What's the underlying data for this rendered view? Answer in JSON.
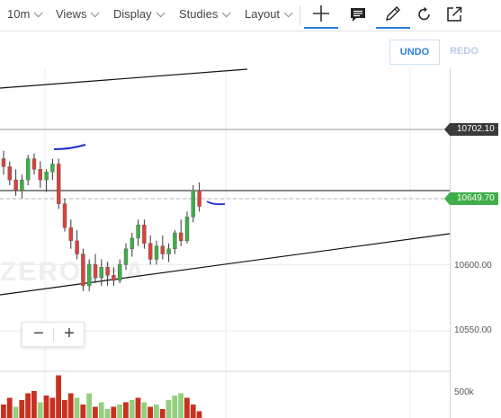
{
  "toolbar": {
    "interval": "10m",
    "menus": [
      "Views",
      "Display",
      "Studies",
      "Layout"
    ],
    "tools": {
      "crosshair": "crosshair-icon",
      "comment": "comment-icon",
      "draw": "pencil-icon",
      "refresh": "refresh-icon",
      "expand": "expand-icon"
    },
    "active_color": "#2b7fd9"
  },
  "actions": {
    "undo_label": "UNDO",
    "redo_label": "REDO"
  },
  "price_axis": {
    "labels": [
      "10600.00",
      "10550.00",
      "500k"
    ],
    "crosshair_price": "10702.10",
    "last_price": "10649.70"
  },
  "watermark": "ZERODHA",
  "zoom": {
    "minus": "−",
    "plus": "+"
  },
  "colors": {
    "up": "#3fae49",
    "down": "#d8423a",
    "up_volume": "#95cf7e",
    "down_volume": "#c8311f",
    "drawing": "#1f2fd0"
  },
  "chart_data": {
    "type": "candlestick",
    "price_range": [
      10535,
      10750
    ],
    "crosshair_level": 10702.1,
    "last_price": 10649.7,
    "candles": [
      [
        10680,
        10686,
        10668,
        10674
      ],
      [
        10674,
        10678,
        10660,
        10664
      ],
      [
        10664,
        10672,
        10652,
        10656
      ],
      [
        10656,
        10668,
        10650,
        10664
      ],
      [
        10664,
        10683,
        10660,
        10680
      ],
      [
        10680,
        10684,
        10668,
        10672
      ],
      [
        10672,
        10678,
        10658,
        10664
      ],
      [
        10664,
        10672,
        10655,
        10670
      ],
      [
        10670,
        10680,
        10664,
        10676
      ],
      [
        10676,
        10680,
        10642,
        10646
      ],
      [
        10646,
        10650,
        10625,
        10628
      ],
      [
        10628,
        10634,
        10612,
        10618
      ],
      [
        10618,
        10626,
        10604,
        10608
      ],
      [
        10608,
        10612,
        10580,
        10584
      ],
      [
        10584,
        10604,
        10580,
        10600
      ],
      [
        10600,
        10608,
        10586,
        10590
      ],
      [
        10590,
        10604,
        10584,
        10598
      ],
      [
        10598,
        10602,
        10584,
        10592
      ],
      [
        10592,
        10598,
        10584,
        10588
      ],
      [
        10588,
        10604,
        10586,
        10600
      ],
      [
        10600,
        10616,
        10596,
        10612
      ],
      [
        10612,
        10624,
        10606,
        10620
      ],
      [
        10620,
        10634,
        10614,
        10630
      ],
      [
        10630,
        10634,
        10612,
        10616
      ],
      [
        10616,
        10622,
        10600,
        10604
      ],
      [
        10604,
        10618,
        10600,
        10614
      ],
      [
        10614,
        10622,
        10604,
        10608
      ],
      [
        10608,
        10616,
        10602,
        10612
      ],
      [
        10612,
        10626,
        10608,
        10624
      ],
      [
        10624,
        10634,
        10614,
        10618
      ],
      [
        10618,
        10640,
        10616,
        10636
      ],
      [
        10636,
        10660,
        10632,
        10656
      ],
      [
        10656,
        10662,
        10640,
        10644
      ]
    ],
    "volumes": [
      {
        "v": 0.3,
        "up": false
      },
      {
        "v": 0.45,
        "up": false
      },
      {
        "v": 0.25,
        "up": true
      },
      {
        "v": 0.4,
        "up": false
      },
      {
        "v": 0.55,
        "up": false
      },
      {
        "v": 0.6,
        "up": false
      },
      {
        "v": 0.35,
        "up": true
      },
      {
        "v": 0.5,
        "up": false
      },
      {
        "v": 0.45,
        "up": false
      },
      {
        "v": 0.95,
        "up": false
      },
      {
        "v": 0.4,
        "up": false
      },
      {
        "v": 0.55,
        "up": false
      },
      {
        "v": 0.45,
        "up": true
      },
      {
        "v": 0.3,
        "up": false
      },
      {
        "v": 0.55,
        "up": true
      },
      {
        "v": 0.25,
        "up": false
      },
      {
        "v": 0.35,
        "up": true
      },
      {
        "v": 0.2,
        "up": true
      },
      {
        "v": 0.25,
        "up": false
      },
      {
        "v": 0.3,
        "up": true
      },
      {
        "v": 0.35,
        "up": false
      },
      {
        "v": 0.4,
        "up": true
      },
      {
        "v": 0.45,
        "up": false
      },
      {
        "v": 0.35,
        "up": true
      },
      {
        "v": 0.25,
        "up": false
      },
      {
        "v": 0.3,
        "up": true
      },
      {
        "v": 0.2,
        "up": false
      },
      {
        "v": 0.4,
        "up": true
      },
      {
        "v": 0.5,
        "up": true
      },
      {
        "v": 0.55,
        "up": true
      },
      {
        "v": 0.45,
        "up": false
      },
      {
        "v": 0.3,
        "up": false
      },
      {
        "v": 0.15,
        "up": false
      }
    ]
  }
}
